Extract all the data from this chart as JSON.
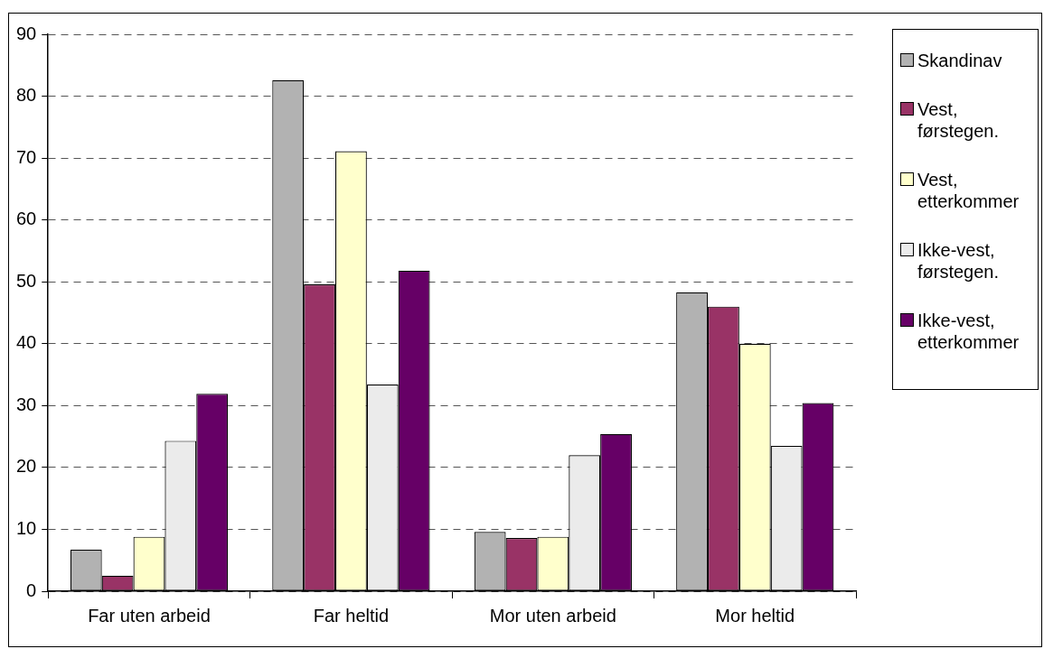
{
  "chart_data": {
    "type": "bar",
    "categories": [
      "Far uten arbeid",
      "Far heltid",
      "Mor uten arbeid",
      "Mor heltid"
    ],
    "series": [
      {
        "name": "Skandinav",
        "color": "#b2b2b2",
        "values": [
          6.7,
          82.6,
          9.6,
          48.3
        ]
      },
      {
        "name": "Vest, førstegen.",
        "color": "#993366",
        "values": [
          2.5,
          49.6,
          8.6,
          46.0
        ]
      },
      {
        "name": "Vest, etterkommer",
        "color": "#ffffcc",
        "values": [
          8.8,
          71.1,
          8.8,
          40.0
        ]
      },
      {
        "name": "Ikke-vest, førstegen.",
        "color": "#ebebeb",
        "values": [
          24.3,
          33.4,
          22.0,
          23.5
        ]
      },
      {
        "name": "Ikke-vest, etterkommer",
        "color": "#660066",
        "values": [
          31.9,
          51.8,
          25.4,
          30.4
        ]
      }
    ],
    "ylim": [
      0,
      90
    ],
    "yticks": [
      0,
      10,
      20,
      30,
      40,
      50,
      60,
      70,
      80,
      90
    ],
    "grid": "y",
    "legend": "right"
  }
}
